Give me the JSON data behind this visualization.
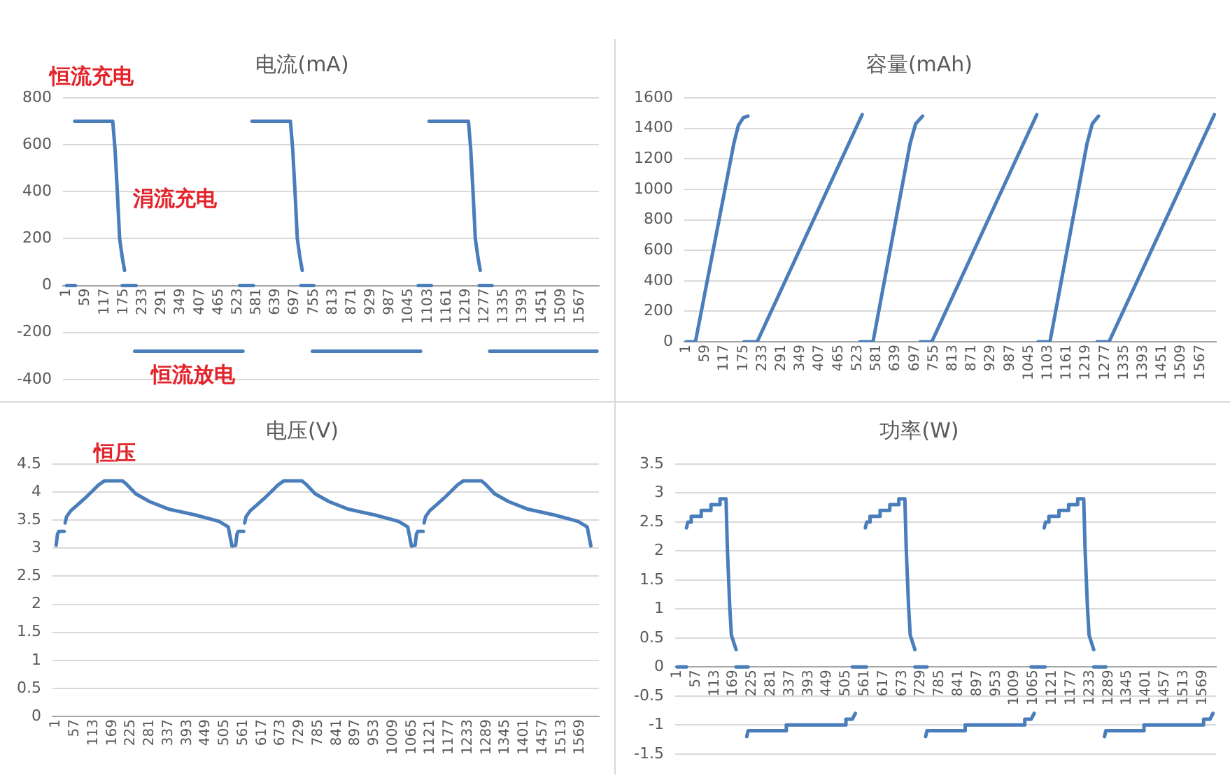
{
  "chart_data": [
    {
      "type": "line",
      "title": "电流(mA)",
      "xlim": [
        -10,
        1625
      ],
      "xticks": [
        1,
        59,
        117,
        175,
        233,
        291,
        349,
        407,
        465,
        523,
        581,
        639,
        697,
        755,
        813,
        871,
        929,
        987,
        1045,
        1103,
        1161,
        1219,
        1277,
        1335,
        1393,
        1451,
        1509,
        1567
      ],
      "ylim": [
        -400,
        800
      ],
      "yticks": [
        -400,
        -200,
        0,
        200,
        400,
        600,
        800
      ],
      "grid": "y",
      "series": [
        {
          "color": "#4a7ebb",
          "x": [
            1,
            28,
            null,
            26,
            142,
            149,
            156,
            163,
            171,
            178,
            null,
            171,
            213,
            null,
            209,
            539,
            null,
            529,
            571,
            null,
            567,
            684,
            691,
            698,
            705,
            713,
            720,
            null,
            716,
            755,
            null,
            751,
            1081,
            null,
            1074,
            1114,
            null,
            1107,
            1227,
            1234,
            1241,
            1248,
            1256,
            1263,
            null,
            1260,
            1299,
            null,
            1292,
            1619
          ],
          "values": [
            0,
            0,
            null,
            700,
            700,
            580,
            400,
            200,
            120,
            65,
            null,
            0,
            0,
            null,
            -280,
            -280,
            null,
            0,
            0,
            null,
            700,
            700,
            580,
            400,
            200,
            120,
            65,
            null,
            0,
            0,
            null,
            -280,
            -280,
            null,
            0,
            0,
            null,
            700,
            700,
            580,
            400,
            200,
            120,
            65,
            null,
            0,
            0,
            null,
            -280,
            -280
          ]
        }
      ],
      "annotations": [
        {
          "text": "恒流充电",
          "x": 77,
          "y": 700
        },
        "涓流充电",
        "恒流放电"
      ]
    },
    {
      "type": "line",
      "title": "容量(mAh)",
      "xlim": [
        -5,
        1615
      ],
      "xticks": [
        1,
        59,
        117,
        175,
        233,
        291,
        349,
        407,
        465,
        523,
        581,
        639,
        697,
        755,
        813,
        871,
        929,
        987,
        1045,
        1103,
        1161,
        1219,
        1277,
        1335,
        1393,
        1451,
        1509,
        1567
      ],
      "ylim": [
        0,
        1600
      ],
      "yticks": [
        0,
        200,
        400,
        600,
        800,
        1000,
        1200,
        1400,
        1600
      ],
      "grid": "y",
      "series": [
        {
          "color": "#4a7ebb",
          "x": [
            1,
            29,
            146,
            160,
            175,
            189,
            null,
            177,
            217,
            537,
            null,
            530,
            570,
            683,
            700,
            721,
            null,
            714,
            749,
            1069,
            null,
            1073,
            1109,
            1222,
            1238,
            1257,
            null,
            1253,
            1289,
            1610
          ],
          "values": [
            0,
            0,
            1300,
            1420,
            1470,
            1480,
            null,
            0,
            0,
            1490,
            null,
            0,
            0,
            1300,
            1430,
            1480,
            null,
            0,
            0,
            1490,
            null,
            0,
            0,
            1300,
            1430,
            1480,
            null,
            0,
            0,
            1490
          ]
        }
      ]
    },
    {
      "type": "line",
      "title": "电压(V)",
      "xlim": [
        -10,
        1625
      ],
      "xticks": [
        1,
        57,
        113,
        169,
        225,
        281,
        337,
        393,
        449,
        505,
        561,
        617,
        673,
        729,
        785,
        841,
        897,
        953,
        1009,
        1065,
        1121,
        1177,
        1233,
        1289,
        1345,
        1401,
        1457,
        1513,
        1569
      ],
      "ylim": [
        0,
        4.5
      ],
      "yticks": [
        0,
        0.5,
        1,
        1.5,
        2,
        2.5,
        3,
        3.5,
        4,
        4.5
      ],
      "grid": "y",
      "series": [
        {
          "color": "#4a7ebb",
          "x": [
            1,
            5,
            9,
            25,
            null,
            28,
            32,
            45,
            66,
            87,
            108,
            128,
            145,
            200,
            210,
            239,
            281,
            336,
            419,
            488,
            516,
            527,
            538,
            542,
            546,
            562,
            null,
            565,
            569,
            582,
            603,
            624,
            645,
            665,
            682,
            737,
            747,
            776,
            818,
            873,
            956,
            1025,
            1053,
            1064,
            1075,
            1079,
            1083,
            1099,
            null,
            1102,
            1106,
            1119,
            1140,
            1161,
            1182,
            1202,
            1219,
            1274,
            1284,
            1313,
            1355,
            1410,
            1493,
            1562,
            1590,
            1601
          ],
          "values": [
            3.05,
            3.25,
            3.3,
            3.3,
            null,
            3.45,
            3.56,
            3.67,
            3.78,
            3.89,
            4.01,
            4.13,
            4.2,
            4.2,
            4.15,
            3.97,
            3.83,
            3.7,
            3.59,
            3.48,
            3.38,
            3.04,
            3.05,
            3.25,
            3.3,
            3.3,
            null,
            3.45,
            3.56,
            3.67,
            3.78,
            3.89,
            4.01,
            4.13,
            4.2,
            4.2,
            4.15,
            3.97,
            3.83,
            3.7,
            3.59,
            3.48,
            3.38,
            3.04,
            3.05,
            3.25,
            3.3,
            3.3,
            null,
            3.45,
            3.56,
            3.67,
            3.78,
            3.89,
            4.01,
            4.13,
            4.2,
            4.2,
            4.15,
            3.97,
            3.83,
            3.7,
            3.59,
            3.48,
            3.38,
            3.04
          ]
        }
      ],
      "annotations": [
        {
          "text": "恒压",
          "x": 177,
          "y": 4.2
        }
      ]
    },
    {
      "type": "line",
      "title": "功率(W)",
      "xlim": [
        -5,
        1610
      ],
      "xticks": [
        1,
        57,
        113,
        169,
        225,
        281,
        337,
        393,
        449,
        505,
        561,
        617,
        673,
        729,
        785,
        841,
        897,
        953,
        1009,
        1065,
        1121,
        1177,
        1233,
        1289,
        1345,
        1401,
        1457,
        1513,
        1569
      ],
      "ylim": [
        -1.5,
        3.5
      ],
      "yticks": [
        -1.5,
        -1,
        -0.5,
        0,
        0.5,
        1,
        1.5,
        2,
        2.5,
        3,
        3.5
      ],
      "grid": "y",
      "series": [
        {
          "color": "#4a7ebb",
          "x": [
            1,
            29,
            null,
            29,
            33,
            43,
            43,
            73,
            73,
            102,
            102,
            129,
            129,
            147,
            151,
            158,
            163,
            177,
            null,
            177,
            213,
            null,
            209,
            213,
            327,
            327,
            505,
            505,
            524,
            533,
            null,
            524,
            566,
            null,
            563,
            567,
            577,
            577,
            607,
            607,
            636,
            636,
            663,
            663,
            681,
            685,
            692,
            697,
            711,
            null,
            711,
            747,
            null,
            743,
            747,
            861,
            861,
            1039,
            1039,
            1058,
            1067,
            null,
            1058,
            1100,
            null,
            1097,
            1101,
            1111,
            1111,
            1141,
            1141,
            1170,
            1170,
            1197,
            1197,
            1215,
            1219,
            1226,
            1231,
            1245,
            null,
            1245,
            1281,
            null,
            1277,
            1281,
            1395,
            1395,
            1573,
            1573,
            1592,
            1601
          ],
          "values": [
            0,
            0,
            null,
            2.4,
            2.5,
            2.5,
            2.6,
            2.6,
            2.7,
            2.7,
            2.8,
            2.8,
            2.9,
            2.9,
            2.05,
            1.05,
            0.55,
            0.3,
            null,
            0,
            0,
            null,
            -1.2,
            -1.1,
            -1.1,
            -1,
            -1,
            -0.9,
            -0.9,
            -0.8,
            null,
            0,
            0,
            null,
            2.4,
            2.5,
            2.5,
            2.6,
            2.6,
            2.7,
            2.7,
            2.8,
            2.8,
            2.9,
            2.9,
            2.05,
            1.05,
            0.55,
            0.3,
            null,
            0,
            0,
            null,
            -1.2,
            -1.1,
            -1.1,
            -1,
            -1,
            -0.9,
            -0.9,
            -0.8,
            null,
            0,
            0,
            null,
            2.4,
            2.5,
            2.5,
            2.6,
            2.6,
            2.7,
            2.7,
            2.8,
            2.8,
            2.9,
            2.9,
            2.05,
            1.05,
            0.55,
            0.3,
            null,
            0,
            0,
            null,
            -1.2,
            -1.1,
            -1.1,
            -1,
            -1,
            -0.9,
            -0.9,
            -0.8
          ]
        }
      ]
    }
  ]
}
